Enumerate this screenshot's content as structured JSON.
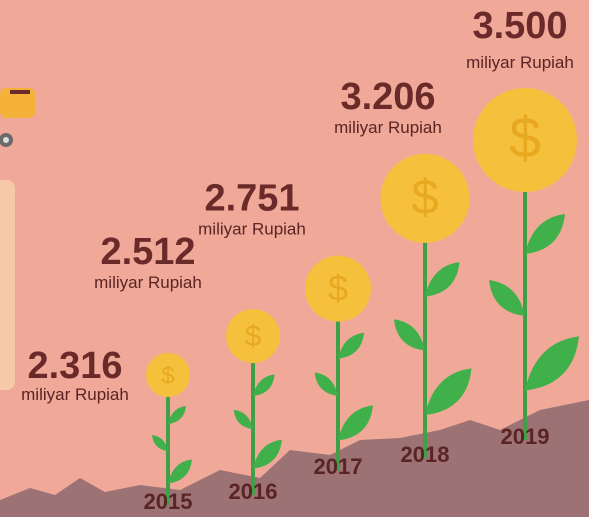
{
  "chart_data": {
    "type": "flower",
    "categories": [
      "2015",
      "2016",
      "2017",
      "2018",
      "2019"
    ],
    "values": [
      2316,
      2512,
      2751,
      3206,
      3500
    ],
    "value_labels": [
      "2.316",
      "2.512",
      "2.751",
      "3.206",
      "3.500"
    ],
    "unit": "miliyar Rupiah",
    "coin_symbol": "$",
    "color": "#f5c13d"
  }
}
